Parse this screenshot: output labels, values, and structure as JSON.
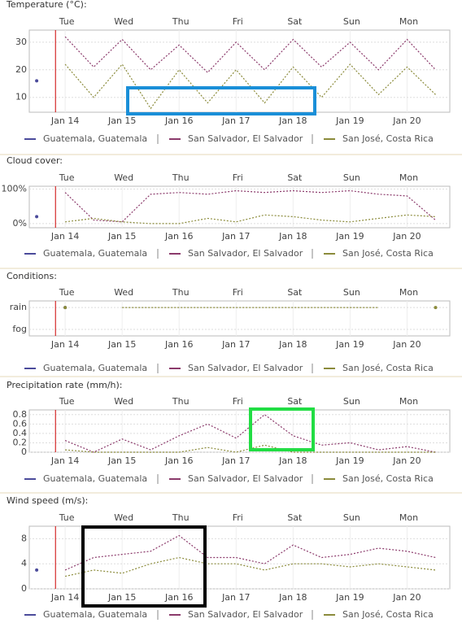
{
  "chart_data": [
    {
      "type": "line",
      "title": "Temperature (°C):",
      "x": [
        13.5,
        14,
        14.5,
        15,
        15.5,
        16,
        16.5,
        17,
        17.5,
        18,
        18.5,
        19,
        19.5,
        20,
        20.5
      ],
      "series": [
        {
          "name": "Guatemala, Guatemala",
          "color": "#4b4b9b",
          "values": [
            16,
            null,
            null,
            null,
            null,
            null,
            null,
            null,
            null,
            null,
            null,
            null,
            null,
            null,
            null
          ]
        },
        {
          "name": "San Salvador, El Salvador",
          "color": "#8b3a6b",
          "values": [
            null,
            32,
            21,
            31,
            20,
            29,
            19,
            30,
            20,
            31,
            21,
            30,
            20,
            31,
            20
          ]
        },
        {
          "name": "San José, Costa Rica",
          "color": "#8b8b3b",
          "values": [
            null,
            22,
            10,
            22,
            6,
            20,
            8,
            20,
            8,
            21,
            10,
            22,
            11,
            21,
            11
          ]
        }
      ],
      "xlim": [
        13.37,
        20.75
      ],
      "xticks": [
        {
          "value": 14,
          "label": "Jan 14"
        },
        {
          "value": 15,
          "label": "Jan 15"
        },
        {
          "value": 16,
          "label": "Jan 16"
        },
        {
          "value": 17,
          "label": "Jan 17"
        },
        {
          "value": 18,
          "label": "Jan 18"
        },
        {
          "value": 19,
          "label": "Jan 19"
        },
        {
          "value": 20,
          "label": "Jan 20"
        }
      ],
      "x2ticks": [
        {
          "value": 14,
          "label": "Tue"
        },
        {
          "value": 15,
          "label": "Wed"
        },
        {
          "value": 16,
          "label": "Thu"
        },
        {
          "value": 17,
          "label": "Fri"
        },
        {
          "value": 18,
          "label": "Sat"
        },
        {
          "value": 19,
          "label": "Sun"
        },
        {
          "value": 20,
          "label": "Mon"
        }
      ],
      "ylim": [
        4.6,
        34.4
      ],
      "yticks": [
        10,
        20,
        30
      ],
      "grid": true,
      "marker_x": 13.83
    },
    {
      "type": "line",
      "title": "Cloud cover:",
      "x": [
        13.5,
        14,
        14.5,
        15,
        15.5,
        16,
        16.5,
        17,
        17.5,
        18,
        18.5,
        19,
        19.5,
        20,
        20.5
      ],
      "series": [
        {
          "name": "Guatemala, Guatemala",
          "color": "#4b4b9b",
          "values": [
            20,
            null,
            null,
            null,
            null,
            null,
            null,
            null,
            null,
            null,
            null,
            null,
            null,
            null,
            null
          ]
        },
        {
          "name": "San Salvador, El Salvador",
          "color": "#8b3a6b",
          "values": [
            null,
            90,
            10,
            5,
            85,
            90,
            85,
            95,
            90,
            95,
            90,
            95,
            85,
            80,
            10
          ]
        },
        {
          "name": "San José, Costa Rica",
          "color": "#8b8b3b",
          "values": [
            null,
            5,
            15,
            5,
            0,
            0,
            15,
            5,
            25,
            20,
            10,
            5,
            15,
            25,
            20
          ]
        }
      ],
      "xlim": [
        13.37,
        20.75
      ],
      "xticks": [
        {
          "value": 14,
          "label": "Jan 14"
        },
        {
          "value": 15,
          "label": "Jan 15"
        },
        {
          "value": 16,
          "label": "Jan 16"
        },
        {
          "value": 17,
          "label": "Jan 17"
        },
        {
          "value": 18,
          "label": "Jan 18"
        },
        {
          "value": 19,
          "label": "Jan 19"
        },
        {
          "value": 20,
          "label": "Jan 20"
        }
      ],
      "x2ticks": [
        {
          "value": 14,
          "label": "Tue"
        },
        {
          "value": 15,
          "label": "Wed"
        },
        {
          "value": 16,
          "label": "Thu"
        },
        {
          "value": 17,
          "label": "Fri"
        },
        {
          "value": 18,
          "label": "Sat"
        },
        {
          "value": 19,
          "label": "Sun"
        },
        {
          "value": 20,
          "label": "Mon"
        }
      ],
      "ylim": [
        -12,
        108
      ],
      "yticks": [
        {
          "value": 0,
          "label": "0%"
        },
        {
          "value": 100,
          "label": "100%"
        }
      ],
      "grid": true,
      "marker_x": 13.83
    },
    {
      "type": "line",
      "title": "Conditions:",
      "x": [
        13.5,
        14,
        14.5,
        15,
        15.5,
        16,
        16.5,
        17,
        17.5,
        18,
        18.5,
        19,
        19.5,
        20,
        20.5
      ],
      "series": [
        {
          "name": "Guatemala, Guatemala",
          "color": "#4b4b9b",
          "values": [
            null,
            1,
            null,
            null,
            null,
            null,
            null,
            null,
            null,
            null,
            null,
            null,
            null,
            null,
            null
          ]
        },
        {
          "name": "San Salvador, El Salvador",
          "color": "#8b3a6b",
          "values": [
            null,
            null,
            null,
            null,
            null,
            null,
            null,
            null,
            null,
            null,
            null,
            null,
            null,
            null,
            null
          ]
        },
        {
          "name": "San José, Costa Rica",
          "color": "#8b8b3b",
          "values": [
            null,
            1,
            null,
            1,
            1,
            1,
            1,
            1,
            1,
            1,
            1,
            1,
            1,
            null,
            1
          ]
        }
      ],
      "xlim": [
        13.37,
        20.75
      ],
      "xticks": [
        {
          "value": 14,
          "label": "Jan 14"
        },
        {
          "value": 15,
          "label": "Jan 15"
        },
        {
          "value": 16,
          "label": "Jan 16"
        },
        {
          "value": 17,
          "label": "Jan 17"
        },
        {
          "value": 18,
          "label": "Jan 18"
        },
        {
          "value": 19,
          "label": "Jan 19"
        },
        {
          "value": 20,
          "label": "Jan 20"
        }
      ],
      "x2ticks": [
        {
          "value": 14,
          "label": "Tue"
        },
        {
          "value": 15,
          "label": "Wed"
        },
        {
          "value": 16,
          "label": "Thu"
        },
        {
          "value": 17,
          "label": "Fri"
        },
        {
          "value": 18,
          "label": "Sat"
        },
        {
          "value": 19,
          "label": "Sun"
        },
        {
          "value": 20,
          "label": "Mon"
        }
      ],
      "ylim": [
        -0.3,
        1.3
      ],
      "yticks": [
        {
          "value": 0,
          "label": "fog"
        },
        {
          "value": 1,
          "label": "rain"
        }
      ],
      "grid": true,
      "marker_x": 13.83
    },
    {
      "type": "line",
      "title": "Precipitation rate (mm/h):",
      "x": [
        13.5,
        14,
        14.5,
        15,
        15.5,
        16,
        16.5,
        17,
        17.5,
        18,
        18.5,
        19,
        19.5,
        20,
        20.5
      ],
      "series": [
        {
          "name": "Guatemala, Guatemala",
          "color": "#4b4b9b",
          "values": [
            null,
            null,
            null,
            null,
            null,
            null,
            null,
            null,
            null,
            null,
            null,
            null,
            null,
            null,
            null
          ]
        },
        {
          "name": "San Salvador, El Salvador",
          "color": "#8b3a6b",
          "values": [
            null,
            0.25,
            0,
            0.28,
            0.05,
            0.35,
            0.6,
            0.3,
            0.8,
            0.35,
            0.15,
            0.2,
            0.05,
            0.12,
            0
          ]
        },
        {
          "name": "San José, Costa Rica",
          "color": "#8b8b3b",
          "values": [
            null,
            0.05,
            0,
            0,
            0,
            0,
            0.1,
            0,
            0.15,
            0,
            0,
            0,
            0,
            0,
            0
          ]
        }
      ],
      "xlim": [
        13.37,
        20.75
      ],
      "xticks": [
        {
          "value": 14,
          "label": "Jan 14"
        },
        {
          "value": 15,
          "label": "Jan 15"
        },
        {
          "value": 16,
          "label": "Jan 16"
        },
        {
          "value": 17,
          "label": "Jan 17"
        },
        {
          "value": 18,
          "label": "Jan 18"
        },
        {
          "value": 19,
          "label": "Jan 19"
        },
        {
          "value": 20,
          "label": "Jan 20"
        }
      ],
      "x2ticks": [
        {
          "value": 14,
          "label": "Tue"
        },
        {
          "value": 15,
          "label": "Wed"
        },
        {
          "value": 16,
          "label": "Thu"
        },
        {
          "value": 17,
          "label": "Fri"
        },
        {
          "value": 18,
          "label": "Sat"
        },
        {
          "value": 19,
          "label": "Sun"
        },
        {
          "value": 20,
          "label": "Mon"
        }
      ],
      "ylim": [
        0,
        0.9
      ],
      "yticks": [
        0,
        0.2,
        0.4,
        0.6,
        0.8
      ],
      "grid": true,
      "marker_x": 13.83
    },
    {
      "type": "line",
      "title": "Wind speed (m/s):",
      "x": [
        13.5,
        14,
        14.5,
        15,
        15.5,
        16,
        16.5,
        17,
        17.5,
        18,
        18.5,
        19,
        19.5,
        20,
        20.5
      ],
      "series": [
        {
          "name": "Guatemala, Guatemala",
          "color": "#4b4b9b",
          "values": [
            3,
            null,
            null,
            null,
            null,
            null,
            null,
            null,
            null,
            null,
            null,
            null,
            null,
            null,
            null
          ]
        },
        {
          "name": "San Salvador, El Salvador",
          "color": "#8b3a6b",
          "values": [
            null,
            3,
            5,
            5.5,
            6,
            8.5,
            5,
            5,
            4,
            7,
            5,
            5.5,
            6.5,
            6,
            5
          ]
        },
        {
          "name": "San José, Costa Rica",
          "color": "#8b8b3b",
          "values": [
            null,
            2,
            3,
            2.5,
            4,
            5,
            4,
            4,
            3,
            4,
            4,
            3.5,
            4,
            3.5,
            3
          ]
        }
      ],
      "xlim": [
        13.37,
        20.75
      ],
      "xticks": [
        {
          "value": 14,
          "label": "Jan 14"
        },
        {
          "value": 15,
          "label": "Jan 15"
        },
        {
          "value": 16,
          "label": "Jan 16"
        },
        {
          "value": 17,
          "label": "Jan 17"
        },
        {
          "value": 18,
          "label": "Jan 18"
        },
        {
          "value": 19,
          "label": "Jan 19"
        },
        {
          "value": 20,
          "label": "Jan 20"
        }
      ],
      "x2ticks": [
        {
          "value": 14,
          "label": "Tue"
        },
        {
          "value": 15,
          "label": "Wed"
        },
        {
          "value": 16,
          "label": "Thu"
        },
        {
          "value": 17,
          "label": "Fri"
        },
        {
          "value": 18,
          "label": "Sat"
        },
        {
          "value": 19,
          "label": "Sun"
        },
        {
          "value": 20,
          "label": "Mon"
        }
      ],
      "ylim": [
        0,
        10
      ],
      "yticks": [
        0,
        4,
        8
      ],
      "grid": true,
      "marker_x": 13.83
    }
  ]
}
